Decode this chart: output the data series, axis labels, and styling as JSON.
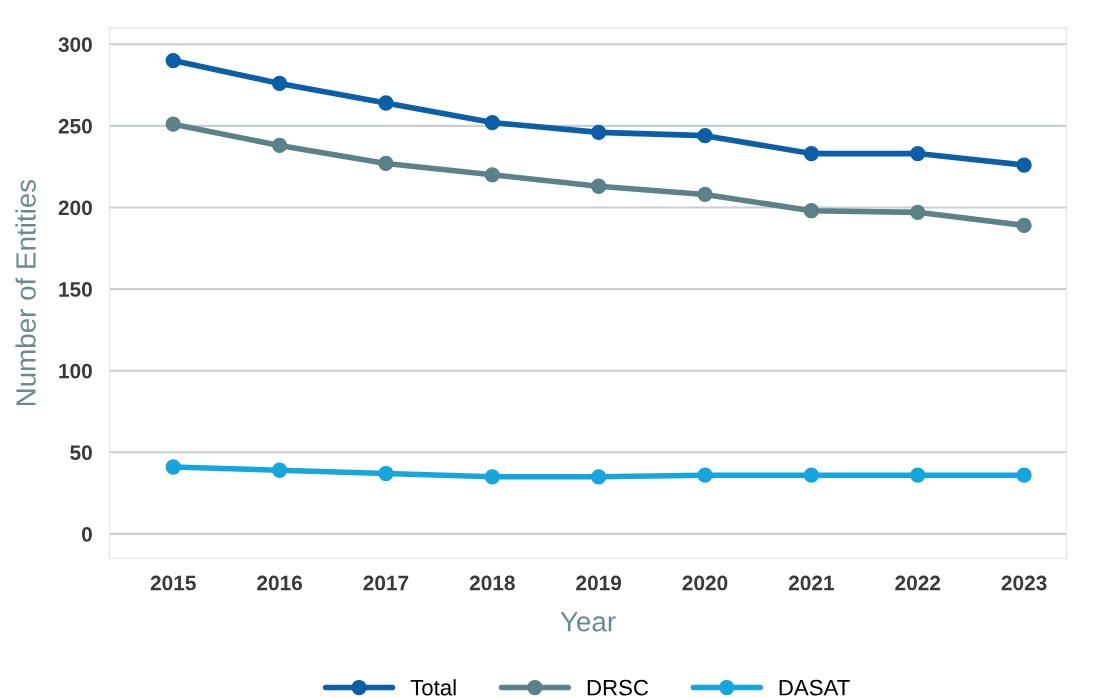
{
  "chart_data": {
    "type": "line",
    "xlabel": "Year",
    "ylabel": "Number of Entities",
    "categories": [
      "2015",
      "2016",
      "2017",
      "2018",
      "2019",
      "2020",
      "2021",
      "2022",
      "2023"
    ],
    "series": [
      {
        "name": "Total",
        "color": "#0b5ea8",
        "values": [
          290,
          276,
          264,
          252,
          246,
          244,
          233,
          233,
          226
        ]
      },
      {
        "name": "DRSC",
        "color": "#5b8189",
        "values": [
          251,
          238,
          227,
          220,
          213,
          208,
          198,
          197,
          189
        ]
      },
      {
        "name": "DASAT",
        "color": "#14a6dc",
        "values": [
          41,
          39,
          37,
          35,
          35,
          36,
          36,
          36,
          36
        ]
      }
    ],
    "ylim": [
      -15,
      310
    ],
    "yticks": [
      0,
      50,
      100,
      150,
      200,
      250,
      300
    ],
    "grid": "y",
    "legend": "bottom",
    "marker": "circle",
    "line_style": "solid"
  }
}
